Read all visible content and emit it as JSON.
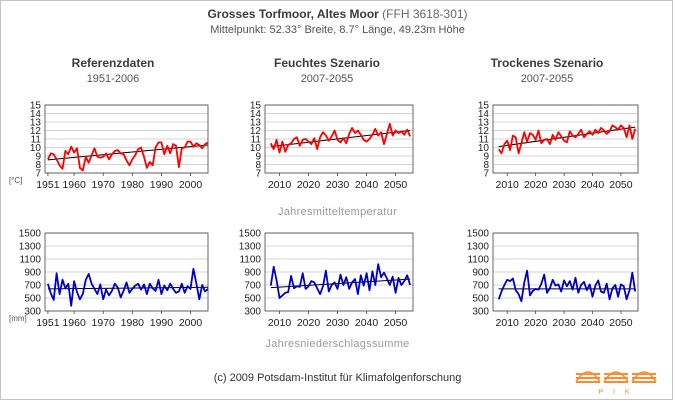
{
  "header": {
    "title_bold": "Grosses Torfmoor,  Altes Moor",
    "title_suffix": "(FFH 3618-301)",
    "subtitle": "Mittelpunkt: 52.33° Breite, 8.7° Länge, 49.23m Höhe"
  },
  "columns": [
    {
      "title": "Referenzdaten",
      "period": "1951-2006"
    },
    {
      "title": "Feuchtes Szenario",
      "period": "2007-2055"
    },
    {
      "title": "Trockenes Szenario",
      "period": "2007-2055"
    }
  ],
  "row_labels": {
    "temperature": "Jahresmitteltemperatur",
    "precipitation": "Jahresniederschlagssumme"
  },
  "units": {
    "temperature": "[°C]",
    "precipitation": "[mm]"
  },
  "footer": "(c) 2009 Potsdam-Institut für Klimafolgenforschung",
  "logo_text": "P I K",
  "colors": {
    "temperature": "#ff0000",
    "precipitation": "#0000cc",
    "trend": "#000000",
    "grid": "#aaaaaa",
    "logo": "#ff8c2a"
  },
  "chart_data": [
    {
      "type": "line",
      "id": "temp-ref",
      "x": [
        1951,
        1952,
        1953,
        1954,
        1955,
        1956,
        1957,
        1958,
        1959,
        1960,
        1961,
        1962,
        1963,
        1964,
        1965,
        1966,
        1967,
        1968,
        1969,
        1970,
        1971,
        1972,
        1973,
        1974,
        1975,
        1976,
        1977,
        1978,
        1979,
        1980,
        1981,
        1982,
        1983,
        1984,
        1985,
        1986,
        1987,
        1988,
        1989,
        1990,
        1991,
        1992,
        1993,
        1994,
        1995,
        1996,
        1997,
        1998,
        1999,
        2000,
        2001,
        2002,
        2003,
        2004,
        2005,
        2006
      ],
      "series": [
        {
          "values": [
            8.6,
            9.3,
            9.2,
            8.6,
            7.9,
            7.5,
            9.6,
            9.2,
            10.1,
            9.4,
            9.9,
            7.6,
            7.3,
            8.9,
            8.2,
            9.1,
            9.9,
            8.9,
            8.8,
            8.9,
            9.3,
            8.6,
            9.2,
            9.6,
            9.7,
            9.3,
            9.2,
            8.5,
            7.9,
            8.6,
            9.1,
            9.8,
            10.0,
            8.9,
            7.6,
            8.3,
            7.9,
            10.0,
            10.6,
            10.6,
            9.2,
            10.2,
            9.3,
            10.4,
            10.2,
            7.7,
            9.9,
            10.0,
            10.7,
            10.7,
            10.1,
            10.5,
            10.3,
            9.9,
            10.4,
            10.6
          ],
          "color": "#ff0000"
        }
      ],
      "trend": [
        8.55,
        10.3
      ],
      "ylim": [
        7,
        15
      ],
      "yticks": [
        7,
        8,
        9,
        10,
        11,
        12,
        13,
        14,
        15
      ],
      "xlim": [
        1950,
        2006
      ],
      "xticks": [
        1951,
        1960,
        1970,
        1980,
        1990,
        2000
      ],
      "ylabel": "[°C]",
      "grid": true
    },
    {
      "type": "line",
      "id": "temp-wet",
      "x": [
        2007,
        2008,
        2009,
        2010,
        2011,
        2012,
        2013,
        2014,
        2015,
        2016,
        2017,
        2018,
        2019,
        2020,
        2021,
        2022,
        2023,
        2024,
        2025,
        2026,
        2027,
        2028,
        2029,
        2030,
        2031,
        2032,
        2033,
        2034,
        2035,
        2036,
        2037,
        2038,
        2039,
        2040,
        2041,
        2042,
        2043,
        2044,
        2045,
        2046,
        2047,
        2048,
        2049,
        2050,
        2051,
        2052,
        2053,
        2054,
        2055
      ],
      "series": [
        {
          "values": [
            10.5,
            9.8,
            10.9,
            9.4,
            10.7,
            9.5,
            10.3,
            10.5,
            11.0,
            11.2,
            10.2,
            10.9,
            11.0,
            10.7,
            10.4,
            11.1,
            9.8,
            11.2,
            11.8,
            11.4,
            10.8,
            11.3,
            12.0,
            10.9,
            10.6,
            11.1,
            10.5,
            11.6,
            12.3,
            11.7,
            12.0,
            11.5,
            10.9,
            10.7,
            11.0,
            11.5,
            12.2,
            11.4,
            11.8,
            10.4,
            11.6,
            12.8,
            11.4,
            12.0,
            11.7,
            11.9,
            11.5,
            12.1,
            11.3
          ],
          "color": "#ff0000"
        }
      ],
      "trend": [
        10.1,
        12.0
      ],
      "ylim": [
        7,
        15
      ],
      "yticks": [
        7,
        8,
        9,
        10,
        11,
        12,
        13,
        14,
        15
      ],
      "xlim": [
        2005,
        2056
      ],
      "xticks": [
        2010,
        2020,
        2030,
        2040,
        2050
      ],
      "ylabel": "",
      "grid": true
    },
    {
      "type": "line",
      "id": "temp-dry",
      "x": [
        2007,
        2008,
        2009,
        2010,
        2011,
        2012,
        2013,
        2014,
        2015,
        2016,
        2017,
        2018,
        2019,
        2020,
        2021,
        2022,
        2023,
        2024,
        2025,
        2026,
        2027,
        2028,
        2029,
        2030,
        2031,
        2032,
        2033,
        2034,
        2035,
        2036,
        2037,
        2038,
        2039,
        2040,
        2041,
        2042,
        2043,
        2044,
        2045,
        2046,
        2047,
        2048,
        2049,
        2050,
        2051,
        2052,
        2053,
        2054,
        2055
      ],
      "series": [
        {
          "values": [
            9.8,
            9.3,
            10.4,
            10.8,
            9.7,
            11.4,
            11.2,
            9.3,
            10.5,
            11.8,
            10.7,
            11.7,
            11.5,
            10.9,
            12.0,
            10.5,
            10.9,
            11.0,
            10.4,
            11.5,
            10.9,
            11.8,
            11.3,
            10.8,
            10.6,
            11.9,
            11.4,
            11.2,
            11.6,
            12.1,
            11.2,
            11.6,
            11.9,
            11.5,
            12.1,
            11.7,
            12.3,
            12.0,
            11.6,
            11.9,
            12.6,
            12.4,
            12.1,
            12.6,
            12.3,
            11.2,
            12.6,
            11.0,
            12.2
          ],
          "color": "#ff0000"
        }
      ],
      "trend": [
        10.1,
        12.4
      ],
      "ylim": [
        7,
        15
      ],
      "yticks": [
        7,
        8,
        9,
        10,
        11,
        12,
        13,
        14,
        15
      ],
      "xlim": [
        2005,
        2056
      ],
      "xticks": [
        2010,
        2020,
        2030,
        2040,
        2050
      ],
      "ylabel": "",
      "grid": true
    },
    {
      "type": "line",
      "id": "prec-ref",
      "x": [
        1951,
        1952,
        1953,
        1954,
        1955,
        1956,
        1957,
        1958,
        1959,
        1960,
        1961,
        1962,
        1963,
        1964,
        1965,
        1966,
        1967,
        1968,
        1969,
        1970,
        1971,
        1972,
        1973,
        1974,
        1975,
        1976,
        1977,
        1978,
        1979,
        1980,
        1981,
        1982,
        1983,
        1984,
        1985,
        1986,
        1987,
        1988,
        1989,
        1990,
        1991,
        1992,
        1993,
        1994,
        1995,
        1996,
        1997,
        1998,
        1999,
        2000,
        2001,
        2002,
        2003,
        2004,
        2005,
        2006
      ],
      "series": [
        {
          "values": [
            720,
            570,
            470,
            880,
            560,
            780,
            650,
            720,
            380,
            760,
            590,
            480,
            560,
            780,
            870,
            720,
            640,
            560,
            710,
            480,
            630,
            540,
            610,
            720,
            660,
            510,
            610,
            740,
            580,
            640,
            690,
            720,
            630,
            710,
            560,
            720,
            650,
            610,
            780,
            560,
            690,
            620,
            720,
            640,
            580,
            600,
            720,
            580,
            680,
            640,
            950,
            720,
            480,
            700,
            600,
            640
          ],
          "color": "#0000cc"
        }
      ],
      "trend": [
        640,
        665
      ],
      "ylim": [
        300,
        1500
      ],
      "yticks": [
        300,
        500,
        700,
        900,
        1100,
        1300,
        1500
      ],
      "xlim": [
        1950,
        2006
      ],
      "xticks": [
        1951,
        1960,
        1970,
        1980,
        1990,
        2000
      ],
      "ylabel": "[mm]",
      "grid": true
    },
    {
      "type": "line",
      "id": "prec-wet",
      "x": [
        2007,
        2008,
        2009,
        2010,
        2011,
        2012,
        2013,
        2014,
        2015,
        2016,
        2017,
        2018,
        2019,
        2020,
        2021,
        2022,
        2023,
        2024,
        2025,
        2026,
        2027,
        2028,
        2029,
        2030,
        2031,
        2032,
        2033,
        2034,
        2035,
        2036,
        2037,
        2038,
        2039,
        2040,
        2041,
        2042,
        2043,
        2044,
        2045,
        2046,
        2047,
        2048,
        2049,
        2050,
        2051,
        2052,
        2053,
        2054,
        2055
      ],
      "series": [
        {
          "values": [
            690,
            980,
            770,
            500,
            540,
            580,
            590,
            840,
            650,
            680,
            670,
            880,
            640,
            680,
            760,
            740,
            650,
            560,
            680,
            920,
            600,
            700,
            740,
            640,
            860,
            700,
            820,
            640,
            740,
            790,
            560,
            850,
            690,
            880,
            620,
            910,
            700,
            1020,
            820,
            890,
            800,
            700,
            830,
            580,
            810,
            700,
            760,
            850,
            700
          ],
          "color": "#0000cc"
        }
      ],
      "trend": [
        660,
        790
      ],
      "ylim": [
        300,
        1500
      ],
      "yticks": [
        300,
        500,
        700,
        900,
        1100,
        1300,
        1500
      ],
      "xlim": [
        2005,
        2056
      ],
      "xticks": [
        2010,
        2020,
        2030,
        2040,
        2050
      ],
      "ylabel": "",
      "grid": true
    },
    {
      "type": "line",
      "id": "prec-dry",
      "x": [
        2007,
        2008,
        2009,
        2010,
        2011,
        2012,
        2013,
        2014,
        2015,
        2016,
        2017,
        2018,
        2019,
        2020,
        2021,
        2022,
        2023,
        2024,
        2025,
        2026,
        2027,
        2028,
        2029,
        2030,
        2031,
        2032,
        2033,
        2034,
        2035,
        2036,
        2037,
        2038,
        2039,
        2040,
        2041,
        2042,
        2043,
        2044,
        2045,
        2046,
        2047,
        2048,
        2049,
        2050,
        2051,
        2052,
        2053,
        2054,
        2055
      ],
      "series": [
        {
          "values": [
            480,
            600,
            700,
            780,
            760,
            800,
            620,
            560,
            450,
            740,
            920,
            540,
            610,
            640,
            630,
            720,
            860,
            580,
            650,
            780,
            690,
            710,
            600,
            770,
            680,
            760,
            630,
            810,
            580,
            700,
            750,
            620,
            710,
            520,
            690,
            770,
            600,
            580,
            720,
            480,
            650,
            700,
            520,
            710,
            680,
            480,
            620,
            890,
            600
          ],
          "color": "#0000cc"
        }
      ],
      "trend": [
        640,
        640
      ],
      "ylim": [
        300,
        1500
      ],
      "yticks": [
        300,
        500,
        700,
        900,
        1100,
        1300,
        1500
      ],
      "xlim": [
        2005,
        2056
      ],
      "xticks": [
        2010,
        2020,
        2030,
        2040,
        2050
      ],
      "ylabel": "",
      "grid": true
    }
  ]
}
